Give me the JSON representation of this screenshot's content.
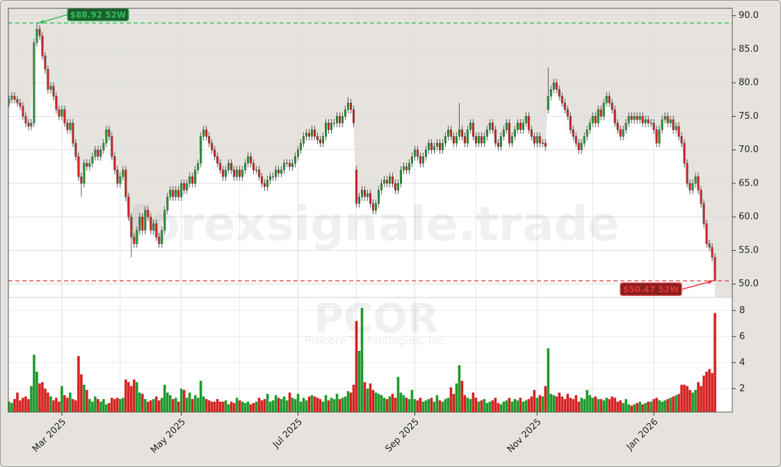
{
  "chart_data": {
    "type": "candlestick",
    "categories": [
      null,
      null,
      null,
      null,
      null,
      null,
      null,
      null,
      null,
      null,
      null,
      null,
      null,
      null,
      null,
      null,
      null,
      null,
      null,
      null,
      null,
      null,
      null,
      null,
      null,
      null,
      null,
      null,
      null,
      null,
      null,
      null,
      null,
      null,
      null,
      null,
      null,
      null,
      null,
      null,
      null,
      null,
      null,
      null,
      null,
      null,
      null,
      null,
      null,
      null,
      null,
      null,
      null,
      null,
      null,
      null,
      null,
      null,
      null,
      null,
      null,
      null,
      null,
      null,
      null,
      null,
      null,
      null,
      null,
      null,
      null,
      null,
      null,
      null,
      null,
      null,
      null,
      null,
      null,
      null,
      null,
      null,
      null,
      null,
      null,
      null,
      null,
      null,
      null,
      null,
      null,
      null,
      null,
      null,
      null,
      null,
      null,
      null,
      null,
      null,
      null,
      null,
      null,
      null,
      null,
      null,
      null,
      null,
      null,
      null,
      null,
      null,
      null,
      null,
      null,
      null,
      null,
      null,
      null,
      null,
      null,
      null,
      null,
      null,
      null,
      null,
      null,
      null,
      null,
      null,
      null,
      null,
      null,
      null,
      null,
      null,
      null,
      null,
      null,
      null,
      null,
      null,
      null,
      null,
      null,
      null,
      null,
      null,
      null,
      null,
      null,
      null,
      null,
      null,
      null,
      null,
      null,
      null,
      null,
      null,
      null,
      null,
      null,
      null,
      null,
      null,
      null,
      null,
      null,
      null,
      null,
      null,
      null,
      null,
      null,
      null,
      null,
      null,
      null,
      null,
      null,
      null,
      null,
      null,
      null,
      null,
      null,
      null,
      null,
      null,
      null,
      null,
      null,
      null,
      null,
      null,
      null,
      null,
      null,
      null,
      null,
      null,
      null,
      null,
      null,
      null,
      null,
      null,
      null,
      null,
      null,
      null,
      null,
      null,
      null,
      null,
      null,
      null,
      null,
      null,
      null,
      null,
      null,
      null,
      null,
      null,
      null,
      null,
      null,
      null,
      null,
      null,
      null,
      null,
      null,
      null,
      null,
      null,
      null,
      null,
      null,
      null,
      null,
      null,
      null,
      null,
      null,
      null,
      null,
      null,
      null,
      null,
      null,
      null,
      null
    ],
    "open": [
      77,
      77.5,
      78,
      77.5,
      77,
      76.5,
      75,
      74,
      73.5,
      74,
      86,
      88,
      87,
      84,
      82,
      79,
      79.5,
      78,
      76,
      75,
      76,
      74,
      73,
      74,
      71,
      69,
      66,
      65,
      68,
      67.5,
      68,
      69,
      70,
      69,
      70,
      71,
      73,
      72,
      69,
      67,
      65,
      66,
      67,
      63,
      60,
      57,
      56,
      58,
      60,
      58,
      61,
      60,
      58,
      59,
      57,
      56,
      58,
      61,
      63,
      64,
      63,
      64,
      63,
      65,
      64,
      65,
      66,
      65,
      67,
      68,
      72,
      73,
      72,
      71,
      70,
      69,
      68,
      67,
      66,
      67,
      68,
      67,
      66,
      67,
      66,
      67,
      68,
      69,
      68,
      67,
      67,
      66,
      65,
      64.5,
      65.5,
      66,
      66,
      67,
      66.5,
      67,
      68,
      68,
      67.5,
      68,
      69,
      70,
      71,
      72,
      72.5,
      72,
      73,
      72,
      71.5,
      71,
      72,
      74,
      73,
      74,
      74,
      75,
      74,
      75,
      76,
      77,
      76,
      67,
      62,
      63,
      64,
      63,
      63.5,
      62,
      61,
      62,
      64,
      65,
      65.5,
      65,
      66,
      65,
      64,
      65,
      67,
      67.5,
      67,
      68,
      69,
      70,
      69,
      68,
      69,
      70,
      71,
      70,
      70.5,
      71,
      70,
      71,
      72,
      73,
      72,
      71,
      72,
      73,
      72,
      71,
      73,
      74,
      72,
      71,
      72,
      71,
      72,
      73,
      74,
      73,
      71,
      70.5,
      72,
      73,
      74,
      71,
      72,
      73,
      74,
      73,
      74,
      75,
      73,
      72,
      71,
      72,
      71,
      71,
      76,
      78,
      79,
      80,
      79,
      78,
      77,
      76,
      75,
      73,
      72,
      71,
      70,
      71,
      72,
      73,
      74,
      75,
      74,
      76,
      75,
      77,
      78,
      77,
      76,
      74,
      73,
      72,
      73,
      74,
      75,
      74.5,
      75,
      74.5,
      75,
      74,
      74.5,
      74,
      74,
      73,
      71,
      73,
      74.5,
      75,
      74,
      74.5,
      73,
      73.5,
      72,
      71,
      68,
      65,
      64,
      65,
      66,
      64,
      62,
      59,
      56,
      55.5,
      54
    ],
    "high": [
      78.1,
      78.6,
      78.6,
      78.1,
      77.6,
      77.1,
      75.6,
      74.6,
      74.6,
      86.6,
      88.92,
      88.6,
      87.6,
      84.6,
      82.6,
      80.1,
      80.1,
      78.6,
      76.6,
      76.6,
      76.6,
      74.6,
      74.6,
      74.6,
      71.6,
      69.6,
      66.6,
      68.6,
      68.6,
      68.6,
      69.6,
      70.6,
      70.6,
      70.6,
      71.6,
      73.6,
      73.6,
      72.6,
      69.6,
      67.6,
      66.6,
      67.6,
      67.6,
      63.6,
      60.6,
      57.6,
      58.6,
      60.6,
      60.6,
      61.6,
      61.6,
      60.6,
      59.6,
      59.6,
      57.6,
      58.6,
      61.6,
      63.6,
      64.6,
      64.6,
      64.6,
      64.6,
      65.6,
      65.6,
      65.6,
      66.6,
      66.6,
      67.6,
      68.6,
      72.6,
      73.6,
      73.6,
      72.6,
      71.6,
      70.6,
      69.6,
      68.6,
      67.6,
      67.6,
      68.6,
      68.6,
      67.6,
      67.6,
      67.6,
      67.6,
      68.6,
      69.6,
      69.6,
      68.6,
      67.6,
      67.6,
      66.6,
      65.6,
      66.1,
      66.6,
      66.6,
      67.6,
      67.6,
      67.6,
      68.6,
      68.6,
      68.6,
      68.6,
      69.6,
      70.6,
      71.6,
      72.6,
      73.1,
      73.1,
      73.6,
      73.6,
      72.6,
      72.1,
      72.6,
      74.6,
      74.6,
      74.6,
      74.6,
      75.6,
      75.6,
      75.6,
      76.6,
      77.9,
      77.6,
      76.6,
      67.6,
      63.6,
      64.6,
      64.6,
      64.1,
      64.1,
      62.6,
      62.6,
      64.6,
      65.6,
      66.1,
      66.1,
      66.6,
      66.6,
      65.6,
      65.6,
      67.6,
      68.1,
      68.1,
      68.6,
      69.6,
      70.6,
      70.6,
      69.6,
      69.6,
      70.6,
      71.6,
      71.6,
      71.1,
      71.6,
      71.6,
      71.6,
      72.6,
      73.6,
      73.6,
      72.6,
      72.6,
      77,
      73.6,
      72.6,
      73.6,
      74.6,
      74.6,
      72.6,
      72.6,
      72.6,
      72.6,
      73.6,
      74.6,
      74.6,
      73.6,
      71.6,
      72.6,
      73.6,
      74.6,
      74.6,
      72.6,
      73.6,
      74.6,
      74.6,
      74.6,
      75.6,
      75.6,
      73.6,
      72.6,
      72.6,
      72.6,
      71.6,
      71.6,
      82.3,
      79.6,
      80.6,
      80.6,
      79.6,
      78.6,
      77.6,
      76.6,
      75.6,
      73.6,
      72.6,
      71.6,
      71.6,
      72.6,
      73.6,
      74.6,
      75.6,
      75.6,
      76.6,
      76.6,
      77.6,
      78.6,
      78.6,
      77.6,
      76.6,
      74.6,
      73.6,
      73.6,
      74.6,
      75.6,
      75.6,
      75.6,
      75.6,
      75.6,
      75.6,
      75.1,
      75.1,
      74.6,
      74.6,
      73.6,
      73.6,
      75.1,
      75.6,
      75.6,
      75.1,
      75.1,
      74.1,
      74.1,
      72.6,
      71.6,
      68.6,
      65.6,
      65.6,
      66.6,
      66.6,
      64.6,
      62.6,
      59.6,
      56.6,
      56.1,
      54.6
    ],
    "low": [
      76.4,
      76.9,
      76.9,
      76.4,
      75.9,
      74.4,
      73.4,
      72.9,
      72.9,
      73.4,
      85.4,
      86.4,
      83.4,
      81.4,
      78.4,
      78.4,
      77.4,
      75.4,
      74.4,
      74.4,
      73.4,
      72.4,
      72.4,
      70.4,
      68.4,
      65.4,
      63,
      64.4,
      66.9,
      66.9,
      67.4,
      68.4,
      68.4,
      68.4,
      69.4,
      70.4,
      71.4,
      68.4,
      66.4,
      64.4,
      64.4,
      65.4,
      62.4,
      59.4,
      54,
      55.4,
      55.4,
      57.4,
      57.4,
      57.4,
      59.4,
      57.4,
      57.4,
      56.4,
      55.4,
      55.4,
      57.4,
      60.4,
      62.4,
      62.4,
      62.4,
      62.4,
      62.4,
      63.4,
      63.4,
      64.4,
      64.4,
      64.4,
      66.4,
      67.4,
      71.4,
      71.4,
      70.4,
      69.4,
      68.4,
      67.4,
      66.4,
      65.4,
      65.4,
      66.4,
      66.4,
      65.4,
      65.4,
      65.4,
      65.4,
      66.4,
      67.4,
      67.4,
      66.4,
      66.4,
      65.4,
      64.4,
      63.9,
      63.9,
      64.9,
      65.4,
      65.4,
      65.9,
      65.9,
      66.4,
      67.4,
      66.9,
      66.9,
      67.4,
      68.4,
      69.4,
      70.4,
      71.4,
      71.4,
      71.4,
      71.4,
      70.9,
      70.4,
      70.4,
      71.4,
      72.4,
      72.4,
      73.4,
      73.4,
      73.4,
      73.4,
      74.4,
      75.4,
      75.4,
      73.4,
      61.4,
      61.4,
      62.4,
      62.4,
      62.4,
      61.4,
      60.4,
      60.4,
      61.4,
      63.4,
      64.4,
      64.4,
      64.4,
      64.4,
      63.4,
      63.4,
      64.4,
      66.4,
      66.4,
      66.4,
      67.4,
      68.4,
      68.4,
      67.4,
      67.4,
      68.4,
      69.4,
      69.4,
      69.4,
      69.9,
      69.4,
      69.4,
      70.4,
      71.4,
      71.4,
      70.4,
      70.4,
      71.4,
      71.4,
      70.4,
      70.4,
      72.4,
      71.4,
      70.4,
      70.4,
      70.4,
      70.4,
      71.4,
      72.4,
      72.4,
      70.4,
      69.9,
      69.9,
      71.4,
      72.4,
      70.4,
      70.4,
      71.4,
      72.4,
      72.4,
      72.4,
      73.4,
      72.4,
      71.4,
      70.4,
      70.4,
      70.4,
      70.4,
      69.9,
      75.4,
      77.4,
      78.4,
      78.4,
      77.4,
      76.4,
      75.4,
      74.4,
      72.4,
      71.4,
      70.4,
      69.4,
      69.4,
      70.4,
      71.4,
      72.4,
      73.4,
      73.4,
      73.4,
      74.4,
      74.4,
      76.4,
      76.4,
      75.4,
      73.4,
      72.4,
      71.4,
      71.4,
      72.4,
      73.4,
      73.9,
      73.9,
      73.9,
      73.9,
      73.4,
      73.4,
      73.4,
      73.4,
      72.4,
      70.4,
      70.4,
      72.4,
      73.9,
      73.4,
      73.4,
      72.4,
      72.4,
      71.4,
      70.4,
      67.4,
      64.4,
      63.4,
      63.4,
      64.4,
      63.4,
      61.4,
      58.4,
      55.4,
      54.9,
      53.4,
      50.47
    ],
    "close": [
      77.5,
      78,
      77.5,
      77,
      76.5,
      75,
      74,
      73.5,
      74,
      86,
      88,
      87,
      84,
      82,
      79,
      79.5,
      78,
      76,
      75,
      76,
      74,
      73,
      74,
      71,
      69,
      66,
      65,
      68,
      67.5,
      68,
      69,
      70,
      69,
      70,
      71,
      73,
      72,
      69,
      67,
      65,
      66,
      67,
      63,
      60,
      57,
      56,
      58,
      60,
      58,
      61,
      60,
      58,
      59,
      57,
      56,
      58,
      61,
      63,
      64,
      63,
      64,
      63,
      65,
      64,
      65,
      66,
      65,
      67,
      68,
      72,
      73,
      72,
      71,
      70,
      69,
      68,
      67,
      66,
      67,
      68,
      67,
      66,
      67,
      66,
      67,
      68,
      69,
      68,
      67,
      67,
      66,
      65,
      64.5,
      65.5,
      66,
      66,
      67,
      66.5,
      67,
      68,
      68,
      67.5,
      68,
      69,
      70,
      71,
      72,
      72.5,
      72,
      73,
      72,
      71.5,
      71,
      72,
      74,
      73,
      74,
      74,
      75,
      74,
      75,
      76,
      77,
      76,
      74,
      62,
      63,
      64,
      63,
      63.5,
      62,
      61,
      62,
      64,
      65,
      65.5,
      65,
      66,
      65,
      64,
      65,
      67,
      67.5,
      67,
      68,
      69,
      70,
      69,
      68,
      69,
      70,
      71,
      70,
      70.5,
      71,
      70,
      71,
      72,
      73,
      72,
      71,
      72,
      73,
      72,
      71,
      73,
      74,
      72,
      71,
      72,
      71,
      72,
      73,
      74,
      73,
      71,
      70.5,
      72,
      73,
      74,
      71,
      72,
      73,
      74,
      73,
      74,
      75,
      73,
      72,
      71,
      72,
      71,
      71,
      70.5,
      78,
      79,
      80,
      79,
      78,
      77,
      76,
      75,
      73,
      72,
      71,
      70,
      71,
      72,
      73,
      74,
      75,
      74,
      76,
      75,
      77,
      78,
      77,
      76,
      74,
      73,
      72,
      73,
      74,
      75,
      74.5,
      75,
      74.5,
      75,
      74,
      74.5,
      74,
      74,
      73,
      71,
      73,
      74.5,
      75,
      74,
      74.5,
      73,
      73.5,
      72,
      71,
      68,
      65,
      64,
      65,
      66,
      64,
      62,
      59,
      56,
      55.5,
      54,
      50.5
    ],
    "volume": [
      1.0,
      0.9,
      1.2,
      1.7,
      1.1,
      1.3,
      1.4,
      1.2,
      2.2,
      4.6,
      3.3,
      2.4,
      2.5,
      2.0,
      1.7,
      1.4,
      1.1,
      1.3,
      1.0,
      2.2,
      1.5,
      1.3,
      1.7,
      1.2,
      1.1,
      4.5,
      3.1,
      2.3,
      1.9,
      1.2,
      1.0,
      1.4,
      1.2,
      1.0,
      1.2,
      0.8,
      0.9,
      1.3,
      1.2,
      1.3,
      1.2,
      1.3,
      2.7,
      2.5,
      2.2,
      2.7,
      2.5,
      1.7,
      1.6,
      1.2,
      1.0,
      1.1,
      1.2,
      1.4,
      1.1,
      1.3,
      2.3,
      1.7,
      1.5,
      1.2,
      1.3,
      1.0,
      2.0,
      1.9,
      1.3,
      1.7,
      1.2,
      1.5,
      1.3,
      2.6,
      1.4,
      1.2,
      1.1,
      1.0,
      1.0,
      1.2,
      1.0,
      1.0,
      1.1,
      0.8,
      1.0,
      0.9,
      1.3,
      1.1,
      1.0,
      0.9,
      1.0,
      0.8,
      0.9,
      1.0,
      1.3,
      1.1,
      1.2,
      1.6,
      1.0,
      1.1,
      1.5,
      1.3,
      1.2,
      1.4,
      1.1,
      1.7,
      1.3,
      1.2,
      1.6,
      1.0,
      1.3,
      1.1,
      1.4,
      1.5,
      1.4,
      1.3,
      1.2,
      1.0,
      1.5,
      1.1,
      1.3,
      1.2,
      1.6,
      1.2,
      1.3,
      1.4,
      1.8,
      1.7,
      2.3,
      7.2,
      4.9,
      8.2,
      2.5,
      2.0,
      2.4,
      1.9,
      1.7,
      1.6,
      1.5,
      1.3,
      1.2,
      1.4,
      1.6,
      1.3,
      2.9,
      1.7,
      1.5,
      1.3,
      1.2,
      1.9,
      1.2,
      1.1,
      1.3,
      1.0,
      1.1,
      1.2,
      1.3,
      1.0,
      1.5,
      1.1,
      1.0,
      1.2,
      1.3,
      2.1,
      1.6,
      2.4,
      3.8,
      2.6,
      1.5,
      1.3,
      1.2,
      1.7,
      1.3,
      1.0,
      1.1,
      1.2,
      0.9,
      1.0,
      1.1,
      1.3,
      0.9,
      0.8,
      1.0,
      1.1,
      1.3,
      1.0,
      1.2,
      1.1,
      1.3,
      1.0,
      1.1,
      1.2,
      1.4,
      1.9,
      1.3,
      1.5,
      1.4,
      2.2,
      5.1,
      1.6,
      1.5,
      1.4,
      1.7,
      1.4,
      1.2,
      1.6,
      1.3,
      1.2,
      1.5,
      1.0,
      1.3,
      1.2,
      1.9,
      1.5,
      1.3,
      1.4,
      1.2,
      1.2,
      1.1,
      1.3,
      1.2,
      1.4,
      1.3,
      1.0,
      1.1,
      0.9,
      1.2,
      0.8,
      0.7,
      0.8,
      0.9,
      1.0,
      0.8,
      0.9,
      1.0,
      1.0,
      1.2,
      1.3,
      1.1,
      1.0,
      1.1,
      1.2,
      1.3,
      1.4,
      1.5,
      1.6,
      2.3,
      2.3,
      2.2,
      1.9,
      1.7,
      1.9,
      2.5,
      2.2,
      3.0,
      3.3,
      3.5,
      3.2,
      7.8
    ],
    "up_color": "#1f9a2c",
    "down_color": "#d42222",
    "xlim": [
      -0.25,
      260.25
    ],
    "xticks": [
      {
        "value": 19,
        "label": "Mar 2025"
      },
      {
        "value": 62,
        "label": "May 2025"
      },
      {
        "value": 104,
        "label": "Jul 2025"
      },
      {
        "value": 146,
        "label": "Sep 2025"
      },
      {
        "value": 190,
        "label": "Nov 2025"
      },
      {
        "value": 232,
        "label": "Jan 2026"
      }
    ],
    "x_minor_ticks": [
      40,
      83,
      125,
      168,
      210
    ],
    "ylim": [
      48,
      91.1
    ],
    "yticks": [
      {
        "value": 50,
        "label": "50.0"
      },
      {
        "value": 55,
        "label": "55.0"
      },
      {
        "value": 60,
        "label": "60.0"
      },
      {
        "value": 65,
        "label": "65.0"
      },
      {
        "value": 70,
        "label": "70.0"
      },
      {
        "value": 75,
        "label": "75.0"
      },
      {
        "value": 80,
        "label": "80.0"
      },
      {
        "value": 85,
        "label": "85.0"
      },
      {
        "value": 90,
        "label": "90.0"
      }
    ],
    "volume_ylim": [
      0.2,
      9
    ],
    "volume_yticks": [
      2,
      4,
      6,
      8
    ],
    "grid": true,
    "annotations": [
      {
        "label": "$88.92 52W",
        "value": 88.92,
        "color": "#2fbf58"
      },
      {
        "label": "$50.47 52W",
        "value": 50.47,
        "color": "#e03535"
      }
    ],
    "watermark": "forexsignale.trade",
    "symbol": "PCOR",
    "company": "Procore Technologies, Inc."
  }
}
